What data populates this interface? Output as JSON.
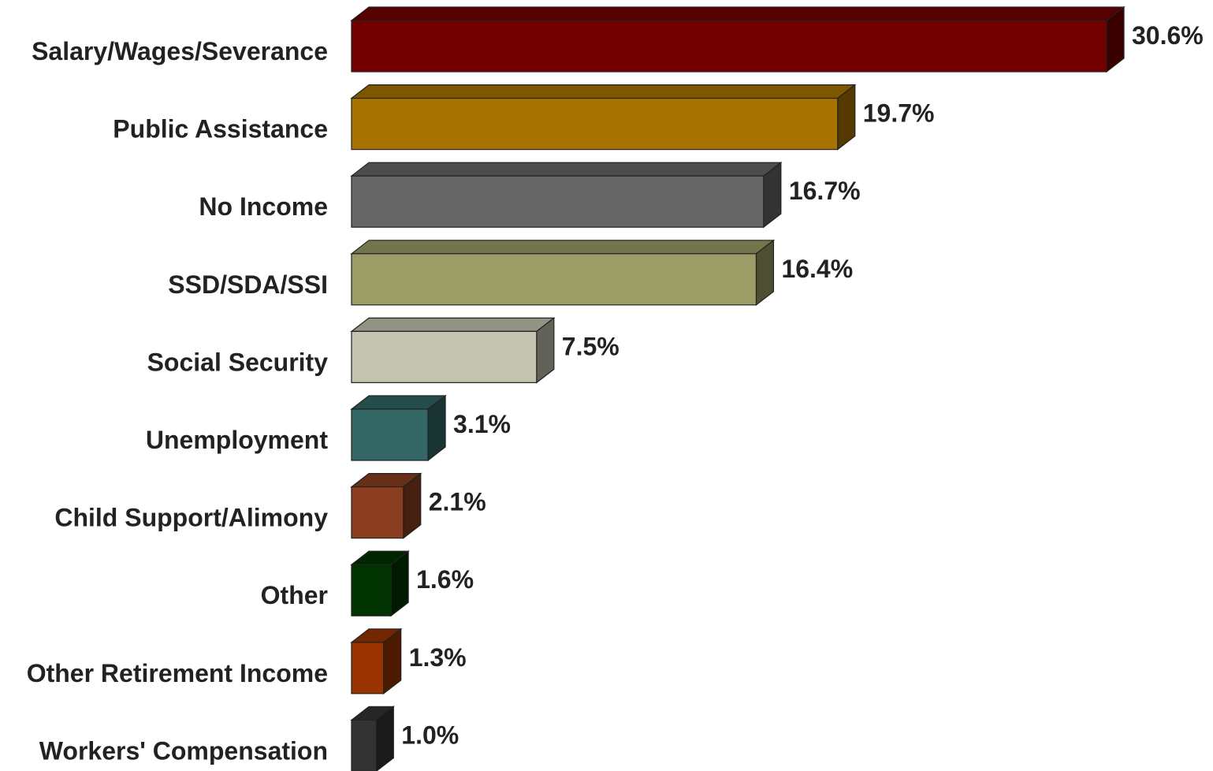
{
  "chart_data": {
    "type": "bar",
    "orientation": "horizontal",
    "style": "3d",
    "title": "",
    "xlabel": "",
    "ylabel": "",
    "xlim": [
      0,
      30.6
    ],
    "grid": false,
    "legend": "none",
    "categories": [
      "Salary/Wages/Severance",
      "Public Assistance",
      "No Income",
      "SSD/SDA/SSI",
      "Social Security",
      "Unemployment",
      "Child Support/Alimony",
      "Other",
      "Other Retirement Income",
      "Workers' Compensation"
    ],
    "values": [
      30.6,
      19.7,
      16.7,
      16.4,
      7.5,
      3.1,
      2.1,
      1.6,
      1.3,
      1.0
    ],
    "value_labels": [
      "30.6%",
      "19.7%",
      "16.7%",
      "16.4%",
      "7.5%",
      "3.1%",
      "2.1%",
      "1.6%",
      "1.3%",
      "1.0%"
    ],
    "colors": [
      "#730000",
      "#A87200",
      "#666666",
      "#9C9C66",
      "#C4C4B1",
      "#326766",
      "#8B3E1F",
      "#003300",
      "#993300",
      "#333333"
    ]
  }
}
